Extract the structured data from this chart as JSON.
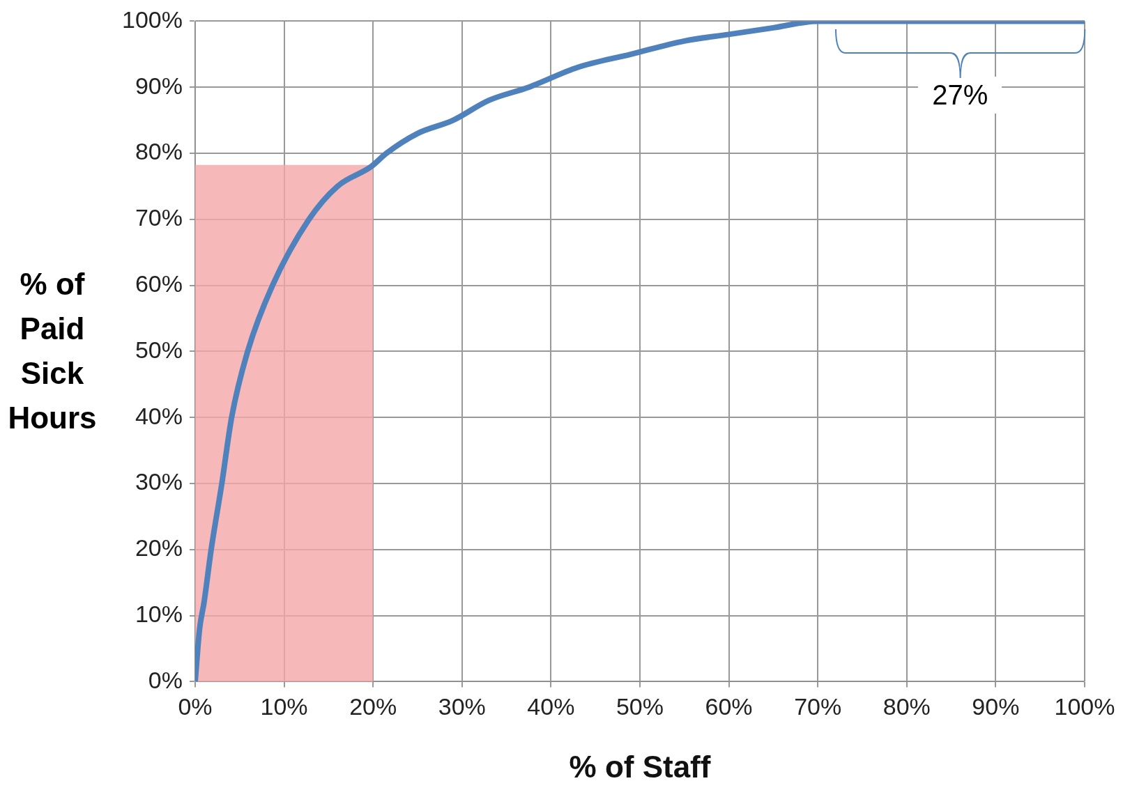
{
  "chart_data": {
    "type": "line",
    "xlabel": "% of Staff",
    "ylabel": "% of Paid Sick Hours",
    "x": [
      0,
      0.5,
      1,
      1.8,
      3,
      4.1,
      5.9,
      8.7,
      12.8,
      16,
      19.8,
      21.5,
      25,
      29,
      33,
      37.5,
      43,
      49,
      55,
      60,
      65,
      70,
      80,
      90,
      100
    ],
    "series": [
      {
        "color": "#4f81bd",
        "values": [
          0,
          8,
          12,
          20,
          30,
          40,
          50,
          60,
          70,
          75,
          78,
          80,
          83,
          85,
          88,
          90,
          93,
          95,
          97,
          98,
          99,
          100,
          100,
          100,
          100
        ]
      }
    ],
    "xlim": [
      0,
      100
    ],
    "ylim": [
      0,
      100
    ],
    "xticks": [
      {
        "value": 0,
        "label": "0%"
      },
      {
        "value": 10,
        "label": "10%"
      },
      {
        "value": 20,
        "label": "20%"
      },
      {
        "value": 30,
        "label": "30%"
      },
      {
        "value": 40,
        "label": "40%"
      },
      {
        "value": 50,
        "label": "50%"
      },
      {
        "value": 60,
        "label": "60%"
      },
      {
        "value": 70,
        "label": "70%"
      },
      {
        "value": 80,
        "label": "80%"
      },
      {
        "value": 90,
        "label": "90%"
      },
      {
        "value": 100,
        "label": "100%"
      }
    ],
    "yticks": [
      {
        "value": 0,
        "label": "0%"
      },
      {
        "value": 10,
        "label": "10%"
      },
      {
        "value": 20,
        "label": "20%"
      },
      {
        "value": 30,
        "label": "30%"
      },
      {
        "value": 40,
        "label": "40%"
      },
      {
        "value": 50,
        "label": "50%"
      },
      {
        "value": 60,
        "label": "60%"
      },
      {
        "value": 70,
        "label": "70%"
      },
      {
        "value": 80,
        "label": "80%"
      },
      {
        "value": 90,
        "label": "90%"
      },
      {
        "value": 100,
        "label": "100%"
      }
    ],
    "bands": [
      {
        "axis": "x",
        "from": 0,
        "to": 20,
        "color": "#f4a6a6"
      }
    ],
    "annotations": [
      {
        "text": "27%",
        "x": 86,
        "y": 100
      }
    ],
    "grid": true,
    "legend": false,
    "marker": "none",
    "line_style": "solid"
  }
}
